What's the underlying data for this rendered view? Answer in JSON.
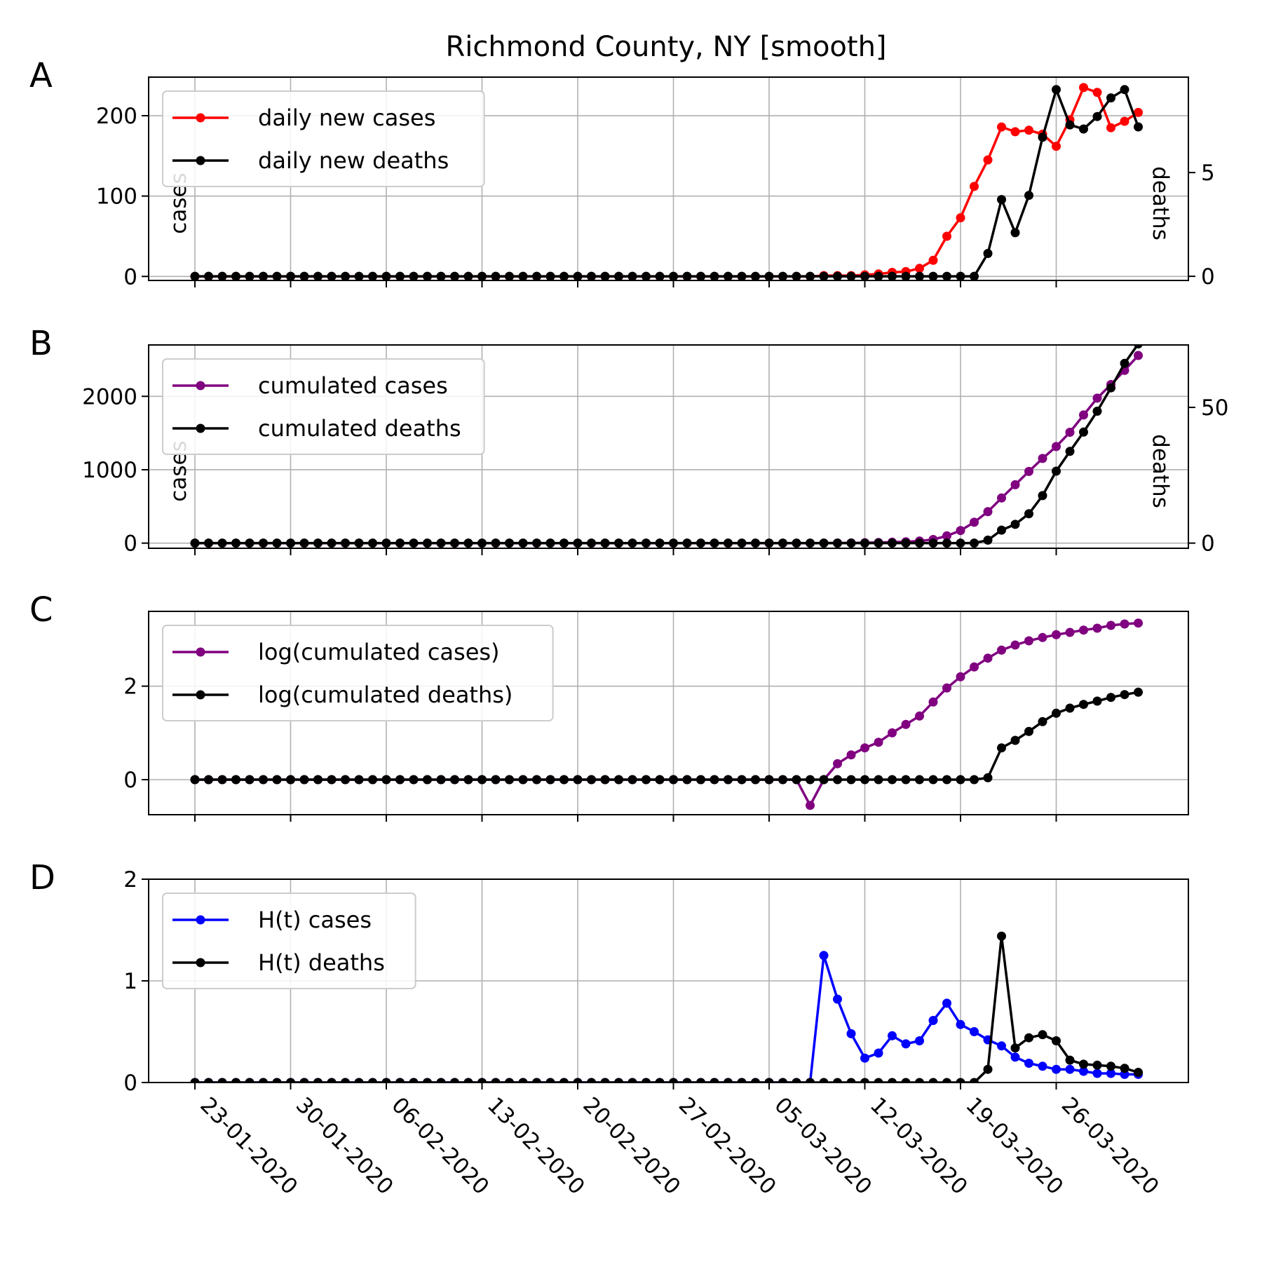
{
  "title": "Richmond County, NY [smooth]",
  "dates": [
    "23-01-2020",
    "30-01-2020",
    "06-02-2020",
    "13-02-2020",
    "20-02-2020",
    "27-02-2020",
    "05-03-2020",
    "12-03-2020",
    "19-03-2020",
    "26-03-2020"
  ],
  "colors": {
    "cases": "#ff0000",
    "cumulated": "#800080",
    "ht_cases": "#0000ff",
    "deaths": "#000000"
  },
  "chart_data": [
    {
      "type": "line",
      "panel": "A",
      "x": [
        "2020-01-23",
        "2020-01-24",
        "2020-01-25",
        "2020-01-26",
        "2020-01-27",
        "2020-01-28",
        "2020-01-29",
        "2020-01-30",
        "2020-01-31",
        "2020-02-01",
        "2020-02-02",
        "2020-02-03",
        "2020-02-04",
        "2020-02-05",
        "2020-02-06",
        "2020-02-07",
        "2020-02-08",
        "2020-02-09",
        "2020-02-10",
        "2020-02-11",
        "2020-02-12",
        "2020-02-13",
        "2020-02-14",
        "2020-02-15",
        "2020-02-16",
        "2020-02-17",
        "2020-02-18",
        "2020-02-19",
        "2020-02-20",
        "2020-02-21",
        "2020-02-22",
        "2020-02-23",
        "2020-02-24",
        "2020-02-25",
        "2020-02-26",
        "2020-02-27",
        "2020-02-28",
        "2020-02-29",
        "2020-03-01",
        "2020-03-02",
        "2020-03-03",
        "2020-03-04",
        "2020-03-05",
        "2020-03-06",
        "2020-03-07",
        "2020-03-08",
        "2020-03-09",
        "2020-03-10",
        "2020-03-11",
        "2020-03-12",
        "2020-03-13",
        "2020-03-14",
        "2020-03-15",
        "2020-03-16",
        "2020-03-17",
        "2020-03-18",
        "2020-03-19",
        "2020-03-20",
        "2020-03-21",
        "2020-03-22",
        "2020-03-23",
        "2020-03-24",
        "2020-03-25",
        "2020-03-26",
        "2020-03-27",
        "2020-03-28",
        "2020-03-29",
        "2020-03-30",
        "2020-03-31",
        "2020-04-01"
      ],
      "ylabel": "cases",
      "y2label": "deaths",
      "ylim": [
        -5,
        248
      ],
      "y2lim": [
        -0.2,
        9.6
      ],
      "yticks": [
        0,
        100,
        200
      ],
      "y2ticks": [
        0,
        5
      ],
      "legend": "upper-left",
      "grid": true,
      "series": [
        {
          "name": "daily new cases",
          "axis": "left",
          "color": "#ff0000",
          "values": [
            0,
            0,
            0,
            0,
            0,
            0,
            0,
            0,
            0,
            0,
            0,
            0,
            0,
            0,
            0,
            0,
            0,
            0,
            0,
            0,
            0,
            0,
            0,
            0,
            0,
            0,
            0,
            0,
            0,
            0,
            0,
            0,
            0,
            0,
            0,
            0,
            0,
            0,
            0,
            0,
            0,
            0,
            0,
            0,
            0,
            0,
            1,
            1,
            1,
            2,
            3,
            5,
            6,
            10,
            20,
            50,
            73,
            112,
            145,
            186,
            180,
            182,
            177,
            162,
            195,
            235,
            229,
            185,
            193,
            204
          ]
        },
        {
          "name": "daily new deaths",
          "axis": "right",
          "color": "#000000",
          "values": [
            0,
            0,
            0,
            0,
            0,
            0,
            0,
            0,
            0,
            0,
            0,
            0,
            0,
            0,
            0,
            0,
            0,
            0,
            0,
            0,
            0,
            0,
            0,
            0,
            0,
            0,
            0,
            0,
            0,
            0,
            0,
            0,
            0,
            0,
            0,
            0,
            0,
            0,
            0,
            0,
            0,
            0,
            0,
            0,
            0,
            0,
            0,
            0,
            0,
            0,
            0,
            0,
            0,
            0,
            0,
            0,
            0,
            0,
            1.1,
            3.7,
            2.1,
            3.9,
            6.7,
            9,
            7.3,
            7.1,
            7.7,
            8.6,
            9,
            7.2
          ]
        }
      ]
    },
    {
      "type": "line",
      "panel": "B",
      "ylabel": "cases",
      "y2label": "deaths",
      "ylim": [
        -70,
        2700
      ],
      "y2lim": [
        -1.9,
        73
      ],
      "yticks": [
        0,
        1000,
        2000
      ],
      "y2ticks": [
        0,
        50
      ],
      "legend": "upper-left",
      "grid": true,
      "series": [
        {
          "name": "cumulated cases",
          "axis": "left",
          "color": "#800080",
          "values": [
            0,
            0,
            0,
            0,
            0,
            0,
            0,
            0,
            0,
            0,
            0,
            0,
            0,
            0,
            0,
            0,
            0,
            0,
            0,
            0,
            0,
            0,
            0,
            0,
            0,
            0,
            0,
            0,
            0,
            0,
            0,
            0,
            0,
            0,
            0,
            0,
            0,
            0,
            0,
            0,
            0,
            0,
            0,
            0,
            0,
            0,
            1,
            2,
            3,
            5,
            8,
            13,
            19,
            29,
            49,
            99,
            172,
            284,
            429,
            615,
            795,
            977,
            1154,
            1316,
            1511,
            1746,
            1975,
            2160,
            2353,
            2557
          ]
        },
        {
          "name": "cumulated deaths",
          "axis": "right",
          "color": "#000000",
          "values": [
            0,
            0,
            0,
            0,
            0,
            0,
            0,
            0,
            0,
            0,
            0,
            0,
            0,
            0,
            0,
            0,
            0,
            0,
            0,
            0,
            0,
            0,
            0,
            0,
            0,
            0,
            0,
            0,
            0,
            0,
            0,
            0,
            0,
            0,
            0,
            0,
            0,
            0,
            0,
            0,
            0,
            0,
            0,
            0,
            0,
            0,
            0,
            0,
            0,
            0,
            0,
            0,
            0,
            0,
            0,
            0,
            0,
            0,
            1.1,
            4.8,
            6.9,
            10.8,
            17.5,
            26.5,
            33.8,
            40.9,
            48.6,
            57.2,
            66.2,
            73.4
          ]
        }
      ]
    },
    {
      "type": "line",
      "panel": "C",
      "ylim": [
        -0.75,
        3.6
      ],
      "yticks": [
        0,
        2
      ],
      "legend": "upper-left",
      "grid": true,
      "series": [
        {
          "name": "log(cumulated cases)",
          "axis": "left",
          "color": "#800080",
          "values": [
            0,
            0,
            0,
            0,
            0,
            0,
            0,
            0,
            0,
            0,
            0,
            0,
            0,
            0,
            0,
            0,
            0,
            0,
            0,
            0,
            0,
            0,
            0,
            0,
            0,
            0,
            0,
            0,
            0,
            0,
            0,
            0,
            0,
            0,
            0,
            0,
            0,
            0,
            0,
            0,
            0,
            0,
            0,
            0,
            0,
            -0.55,
            0,
            0.34,
            0.53,
            0.68,
            0.8,
            1.0,
            1.18,
            1.36,
            1.66,
            1.96,
            2.2,
            2.41,
            2.6,
            2.77,
            2.88,
            2.97,
            3.04,
            3.1,
            3.15,
            3.2,
            3.24,
            3.3,
            3.33,
            3.35
          ]
        },
        {
          "name": "log(cumulated deaths)",
          "axis": "left",
          "color": "#000000",
          "values": [
            0,
            0,
            0,
            0,
            0,
            0,
            0,
            0,
            0,
            0,
            0,
            0,
            0,
            0,
            0,
            0,
            0,
            0,
            0,
            0,
            0,
            0,
            0,
            0,
            0,
            0,
            0,
            0,
            0,
            0,
            0,
            0,
            0,
            0,
            0,
            0,
            0,
            0,
            0,
            0,
            0,
            0,
            0,
            0,
            0,
            0,
            0,
            0,
            0,
            0,
            0,
            0,
            0,
            0,
            0,
            0,
            0,
            0,
            0.04,
            0.68,
            0.84,
            1.03,
            1.24,
            1.42,
            1.53,
            1.61,
            1.68,
            1.76,
            1.82,
            1.87
          ]
        }
      ]
    },
    {
      "type": "line",
      "panel": "D",
      "ylim": [
        0,
        2
      ],
      "yticks": [
        0,
        1,
        2
      ],
      "legend": "upper-left",
      "grid": true,
      "series": [
        {
          "name": "H(t) cases",
          "axis": "left",
          "color": "#0000ff",
          "values": [
            0,
            0,
            0,
            0,
            0,
            0,
            0,
            0,
            0,
            0,
            0,
            0,
            0,
            0,
            0,
            0,
            0,
            0,
            0,
            0,
            0,
            0,
            0,
            0,
            0,
            0,
            0,
            0,
            0,
            0,
            0,
            0,
            0,
            0,
            0,
            0,
            0,
            0,
            0,
            0,
            0,
            0,
            0,
            0,
            0,
            0,
            1.25,
            0.82,
            0.48,
            0.24,
            0.29,
            0.46,
            0.38,
            0.41,
            0.61,
            0.78,
            0.57,
            0.5,
            0.42,
            0.36,
            0.25,
            0.19,
            0.16,
            0.13,
            0.13,
            0.11,
            0.09,
            0.09,
            0.08,
            0.08
          ]
        },
        {
          "name": "H(t) deaths",
          "axis": "left",
          "color": "#000000",
          "values": [
            0,
            0,
            0,
            0,
            0,
            0,
            0,
            0,
            0,
            0,
            0,
            0,
            0,
            0,
            0,
            0,
            0,
            0,
            0,
            0,
            0,
            0,
            0,
            0,
            0,
            0,
            0,
            0,
            0,
            0,
            0,
            0,
            0,
            0,
            0,
            0,
            0,
            0,
            0,
            0,
            0,
            0,
            0,
            0,
            0,
            0,
            0,
            0,
            0,
            0,
            0,
            0,
            0,
            0,
            0,
            0,
            0,
            0,
            0.13,
            1.44,
            0.34,
            0.44,
            0.47,
            0.41,
            0.22,
            0.18,
            0.17,
            0.16,
            0.14,
            0.1
          ]
        }
      ]
    }
  ]
}
